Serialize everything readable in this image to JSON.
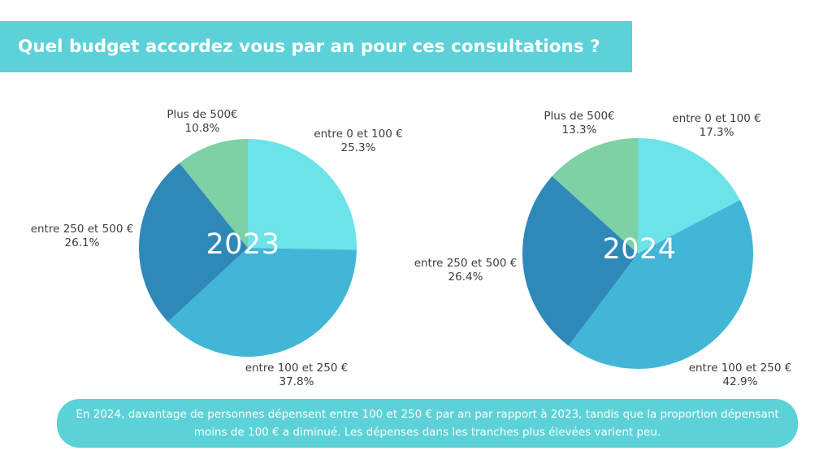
{
  "title": "Quel budget accordez vous par an pour ces consultations ?",
  "footer": "En 2024, davantage de personnes dépensent entre 100 et 250 € par an par rapport à 2023, tandis que la proportion dépensant moins de 100 € a diminué. Les dépenses dans les tranches plus élevées varient peu.",
  "colors": {
    "banner": "#5cd2d8",
    "slice_0_100": "#6ce3e8",
    "slice_100_250": "#41b6d6",
    "slice_250_500": "#2e89b9",
    "slice_500_plus": "#7dd1a4"
  },
  "chart_data": [
    {
      "type": "pie",
      "center_label": "2023",
      "slices": [
        {
          "label": "entre 0 et 100 €",
          "value": 25.3,
          "display": "25.3%"
        },
        {
          "label": "entre 100 et 250 €",
          "value": 37.8,
          "display": "37.8%"
        },
        {
          "label": "entre 250 et 500 €",
          "value": 26.1,
          "display": "26.1%"
        },
        {
          "label": "Plus de 500€",
          "value": 10.8,
          "display": "10.8%"
        }
      ]
    },
    {
      "type": "pie",
      "center_label": "2024",
      "slices": [
        {
          "label": "entre 0 et 100 €",
          "value": 17.3,
          "display": "17.3%"
        },
        {
          "label": "entre 100 et 250 €",
          "value": 42.9,
          "display": "42.9%"
        },
        {
          "label": "entre 250 et 500 €",
          "value": 26.4,
          "display": "26.4%"
        },
        {
          "label": "Plus de 500€",
          "value": 13.3,
          "display": "13.3%"
        }
      ]
    }
  ]
}
